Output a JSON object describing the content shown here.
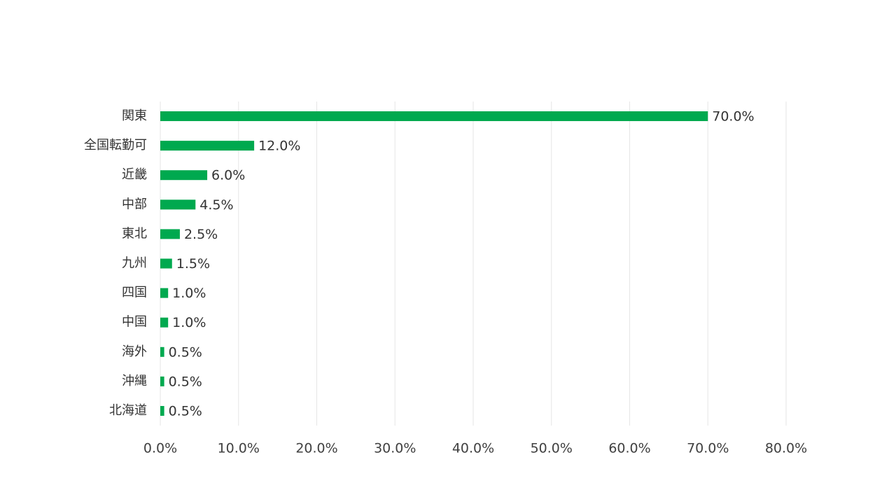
{
  "chart_data": {
    "type": "bar",
    "orientation": "horizontal",
    "categories": [
      "関東",
      "全国転勤可",
      "近畿",
      "中部",
      "東北",
      "九州",
      "四国",
      "中国",
      "海外",
      "沖縄",
      "北海道"
    ],
    "values": [
      70.0,
      12.0,
      6.0,
      4.5,
      2.5,
      1.5,
      1.0,
      1.0,
      0.5,
      0.5,
      0.5
    ],
    "value_labels": [
      "70.0%",
      "12.0%",
      "6.0%",
      "4.5%",
      "2.5%",
      "1.5%",
      "1.0%",
      "1.0%",
      "0.5%",
      "0.5%",
      "0.5%"
    ],
    "xticks": [
      "0.0%",
      "10.0%",
      "20.0%",
      "30.0%",
      "40.0%",
      "50.0%",
      "60.0%",
      "70.0%",
      "80.0%"
    ],
    "xlim": [
      0,
      80
    ],
    "grid": true,
    "bar_color": "#00a94f",
    "legend": "none"
  }
}
